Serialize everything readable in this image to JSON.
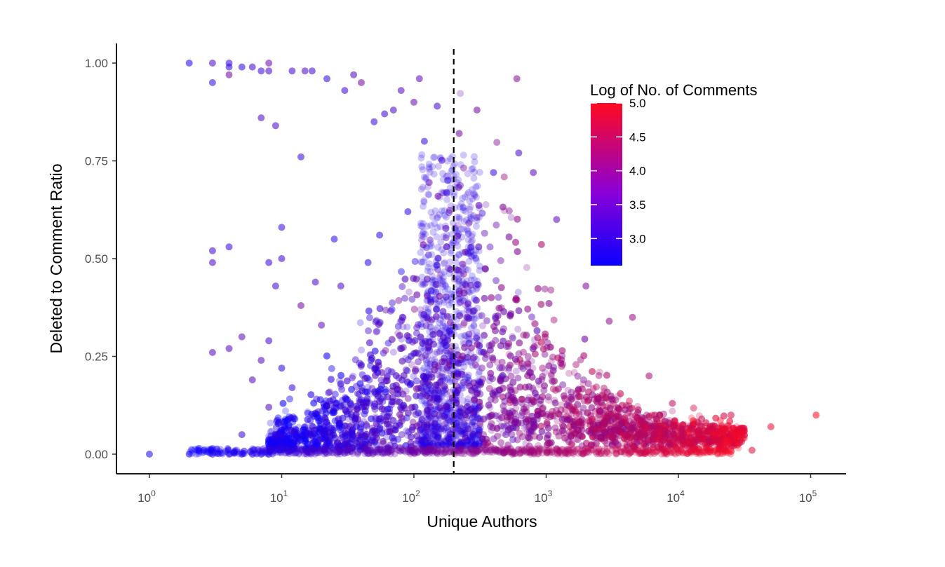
{
  "chart_data": {
    "type": "scatter",
    "title": "",
    "xlabel": "Unique Authors",
    "ylabel": "Deleted to Comment Ratio",
    "x_scale": "log10",
    "xlim": [
      1,
      100000
    ],
    "ylim": [
      0,
      1
    ],
    "x_ticks": [
      {
        "value": 1,
        "base": "10",
        "exp": "0"
      },
      {
        "value": 10,
        "base": "10",
        "exp": "1"
      },
      {
        "value": 100,
        "base": "10",
        "exp": "2"
      },
      {
        "value": 1000,
        "base": "10",
        "exp": "3"
      },
      {
        "value": 10000,
        "base": "10",
        "exp": "4"
      },
      {
        "value": 100000,
        "base": "10",
        "exp": "5"
      }
    ],
    "y_ticks": [
      {
        "value": 0,
        "label": "0.00"
      },
      {
        "value": 0.25,
        "label": "0.25"
      },
      {
        "value": 0.5,
        "label": "0.50"
      },
      {
        "value": 0.75,
        "label": "0.75"
      },
      {
        "value": 1,
        "label": "1.00"
      }
    ],
    "reference_line": {
      "axis": "x",
      "value": 200,
      "style": "dashed",
      "color": "#000000"
    },
    "grid": false,
    "color_scale": {
      "title": "Log of No. of Comments",
      "low_color": "#0a00ff",
      "high_color": "#ff0a1e",
      "range": [
        2.6,
        5.0
      ],
      "ticks": [
        "3.0",
        "3.5",
        "4.0",
        "4.5",
        "5.0"
      ],
      "placement": "top-right"
    },
    "points_note": "Thousands of semi-transparent points; representative sample below",
    "points": [
      [
        1,
        0.0,
        2.8
      ],
      [
        2,
        1.0,
        2.7
      ],
      [
        2,
        0.0,
        2.7
      ],
      [
        3,
        1.0,
        3.2
      ],
      [
        3,
        0.95,
        2.9
      ],
      [
        3,
        0.52,
        3.1
      ],
      [
        3,
        0.49,
        3.2
      ],
      [
        3,
        0.26,
        3.3
      ],
      [
        3,
        0.0,
        2.8
      ],
      [
        4,
        1.0,
        3.0
      ],
      [
        4,
        0.99,
        2.9
      ],
      [
        4,
        0.97,
        3.6
      ],
      [
        4,
        0.53,
        3.0
      ],
      [
        4,
        0.27,
        3.3
      ],
      [
        4,
        0.0,
        2.8
      ],
      [
        5,
        0.99,
        2.9
      ],
      [
        5,
        0.3,
        3.4
      ],
      [
        5,
        0.05,
        3.0
      ],
      [
        5,
        0.0,
        2.8
      ],
      [
        6,
        0.99,
        3.1
      ],
      [
        6,
        0.19,
        3.3
      ],
      [
        6,
        0.0,
        2.8
      ],
      [
        7,
        0.98,
        3.0
      ],
      [
        7,
        0.86,
        3.2
      ],
      [
        7,
        0.24,
        3.3
      ],
      [
        7,
        0.0,
        2.8
      ],
      [
        8,
        1.0,
        3.5
      ],
      [
        8,
        0.98,
        3.2
      ],
      [
        8,
        0.49,
        3.0
      ],
      [
        8,
        0.29,
        3.1
      ],
      [
        8,
        0.12,
        3.3
      ],
      [
        8,
        0.0,
        2.8
      ],
      [
        9,
        0.84,
        3.2
      ],
      [
        9,
        0.43,
        3.1
      ],
      [
        9,
        0.05,
        3.0
      ],
      [
        10,
        0.58,
        3.0
      ],
      [
        10,
        0.5,
        3.1
      ],
      [
        10,
        0.22,
        2.9
      ],
      [
        12,
        0.98,
        3.1
      ],
      [
        12,
        0.17,
        3.0
      ],
      [
        14,
        0.76,
        3.0
      ],
      [
        14,
        0.38,
        3.6
      ],
      [
        15,
        0.98,
        3.2
      ],
      [
        17,
        0.98,
        3.1
      ],
      [
        18,
        0.44,
        3.2
      ],
      [
        20,
        0.33,
        3.4
      ],
      [
        22,
        0.96,
        3.0
      ],
      [
        25,
        0.55,
        2.9
      ],
      [
        28,
        0.43,
        3.2
      ],
      [
        30,
        0.93,
        3.1
      ],
      [
        35,
        0.97,
        3.3
      ],
      [
        40,
        0.95,
        3.6
      ],
      [
        45,
        0.49,
        2.9
      ],
      [
        50,
        0.85,
        3.0
      ],
      [
        55,
        0.56,
        2.9
      ],
      [
        60,
        0.87,
        3.1
      ],
      [
        70,
        0.88,
        3.2
      ],
      [
        80,
        0.93,
        3.3
      ],
      [
        90,
        0.62,
        2.9
      ],
      [
        100,
        0.9,
        3.5
      ],
      [
        110,
        0.96,
        3.4
      ],
      [
        120,
        0.8,
        3.0
      ],
      [
        150,
        0.89,
        3.1
      ],
      [
        180,
        0.7,
        2.9
      ],
      [
        220,
        0.82,
        3.6
      ],
      [
        300,
        0.88,
        3.6
      ],
      [
        400,
        0.72,
        3.0
      ],
      [
        600,
        0.96,
        3.8
      ],
      [
        620,
        0.77,
        3.2
      ],
      [
        800,
        0.72,
        3.3
      ],
      [
        1200,
        0.6,
        3.4
      ],
      [
        2000,
        0.43,
        3.7
      ],
      [
        3000,
        0.34,
        3.9
      ],
      [
        4500,
        0.35,
        4.0
      ],
      [
        6000,
        0.2,
        4.1
      ],
      [
        9000,
        0.13,
        4.3
      ],
      [
        15000,
        0.09,
        4.5
      ],
      [
        25000,
        0.1,
        4.6
      ],
      [
        36000,
        0.01,
        4.7
      ],
      [
        50000,
        0.07,
        4.8
      ],
      [
        110000,
        0.1,
        5.0
      ]
    ]
  }
}
